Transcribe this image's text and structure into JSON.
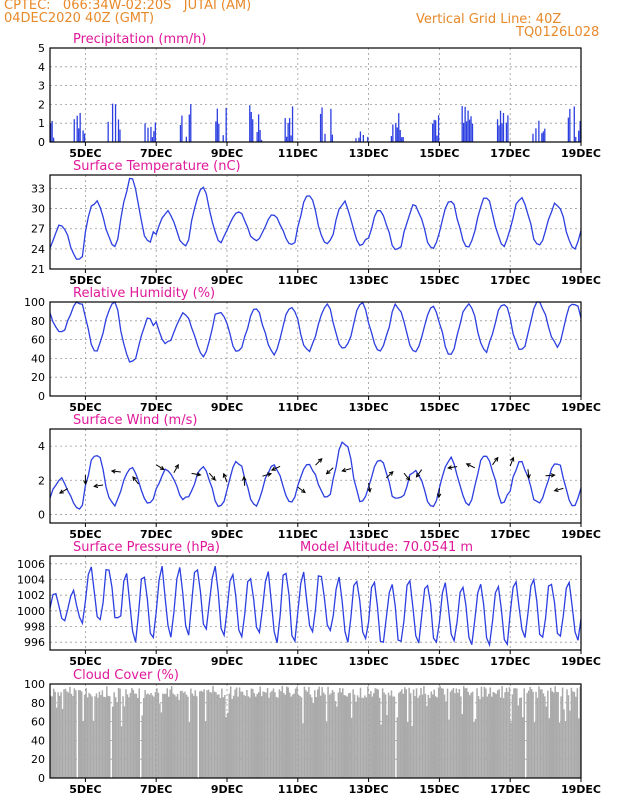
{
  "header": {
    "line1_left": "CPTEC:   066:34W-02:20S   JUTAI (AM)",
    "line2_left": "04DEC2020 40Z (GMT)",
    "line1_right": "Vertical Grid Line: 40Z",
    "line2_right": "TQ0126L028"
  },
  "colors": {
    "header": "#e8892a",
    "title": "#e0189a",
    "line": "#2c3fe0",
    "bar": "#2c3fe0",
    "cloud": "#aaaaaa"
  },
  "x_ticks": [
    "5DEC",
    "7DEC",
    "9DEC",
    "11DEC",
    "13DEC",
    "15DEC",
    "17DEC",
    "19DEC"
  ],
  "chart_data": [
    {
      "type": "bar",
      "title": "Precipitation (mm/h)",
      "ylim": [
        0,
        5
      ],
      "yticks": [
        0,
        1,
        2,
        3,
        4,
        5
      ],
      "series_key": "precip"
    },
    {
      "type": "line",
      "title": "Surface Temperature (nC)",
      "ylim": [
        21,
        35
      ],
      "yticks": [
        21,
        24,
        27,
        30,
        33
      ],
      "daily_min": [
        22.5,
        24.5,
        24.8,
        24.6,
        24.8,
        25.2,
        24.6,
        24.7,
        24.2,
        23.9,
        24.3,
        24.5,
        24.4,
        24.6,
        24.3
      ],
      "daily_max": [
        27.5,
        31.2,
        34.2,
        29.5,
        33.2,
        29.6,
        29.3,
        32.2,
        31.1,
        29.5,
        30.4,
        31.1,
        31.8,
        31.6,
        30.8
      ]
    },
    {
      "type": "line",
      "title": "Relative Humidity (%)",
      "ylim": [
        0,
        100
      ],
      "yticks": [
        0,
        20,
        40,
        60,
        80,
        100
      ],
      "daily_min": [
        68,
        48,
        36,
        56,
        44,
        48,
        46,
        48,
        48,
        46,
        48,
        46,
        48,
        47,
        54
      ],
      "daily_max": [
        100,
        100,
        84,
        88,
        92,
        92,
        93,
        96,
        98,
        96,
        96,
        98,
        100,
        100,
        100
      ]
    },
    {
      "type": "line",
      "title": "Surface Wind (m/s)",
      "ylim": [
        -0.5,
        5
      ],
      "yticks": [
        0,
        2,
        4
      ],
      "daily_min": [
        0.3,
        0.6,
        0.7,
        0.9,
        0.5,
        0.4,
        0.8,
        1.0,
        0.7,
        0.8,
        0.5,
        0.6,
        0.7,
        0.6,
        0.5
      ],
      "daily_max": [
        2.1,
        3.6,
        2.7,
        2.6,
        2.8,
        3.1,
        2.9,
        2.9,
        4.3,
        3.2,
        2.6,
        3.3,
        3.6,
        3.0,
        3.1
      ]
    },
    {
      "type": "line",
      "title": "Surface Pressure (hPa)",
      "annotation": "Model Altitude: 70.0541 m",
      "ylim": [
        995,
        1007
      ],
      "yticks": [
        996,
        998,
        1000,
        1002,
        1004,
        1006
      ],
      "daily_min": [
        998.5,
        998.5,
        996.0,
        996.8,
        997.0,
        996.6,
        996.1,
        996.8,
        996.1,
        995.5,
        995.8,
        995.9,
        995.8,
        996.3,
        996.4
      ],
      "daily_max": [
        1002.5,
        1005.8,
        1004.6,
        1005.5,
        1005.7,
        1004.8,
        1005.3,
        1005.0,
        1004.2,
        1003.7,
        1003.8,
        1003.5,
        1003.6,
        1003.9,
        1003.6
      ]
    },
    {
      "type": "bar",
      "title": "Cloud Cover (%)",
      "ylim": [
        0,
        100
      ],
      "yticks": [
        0,
        20,
        40,
        60,
        80,
        100
      ],
      "series_key": "cloud"
    }
  ]
}
